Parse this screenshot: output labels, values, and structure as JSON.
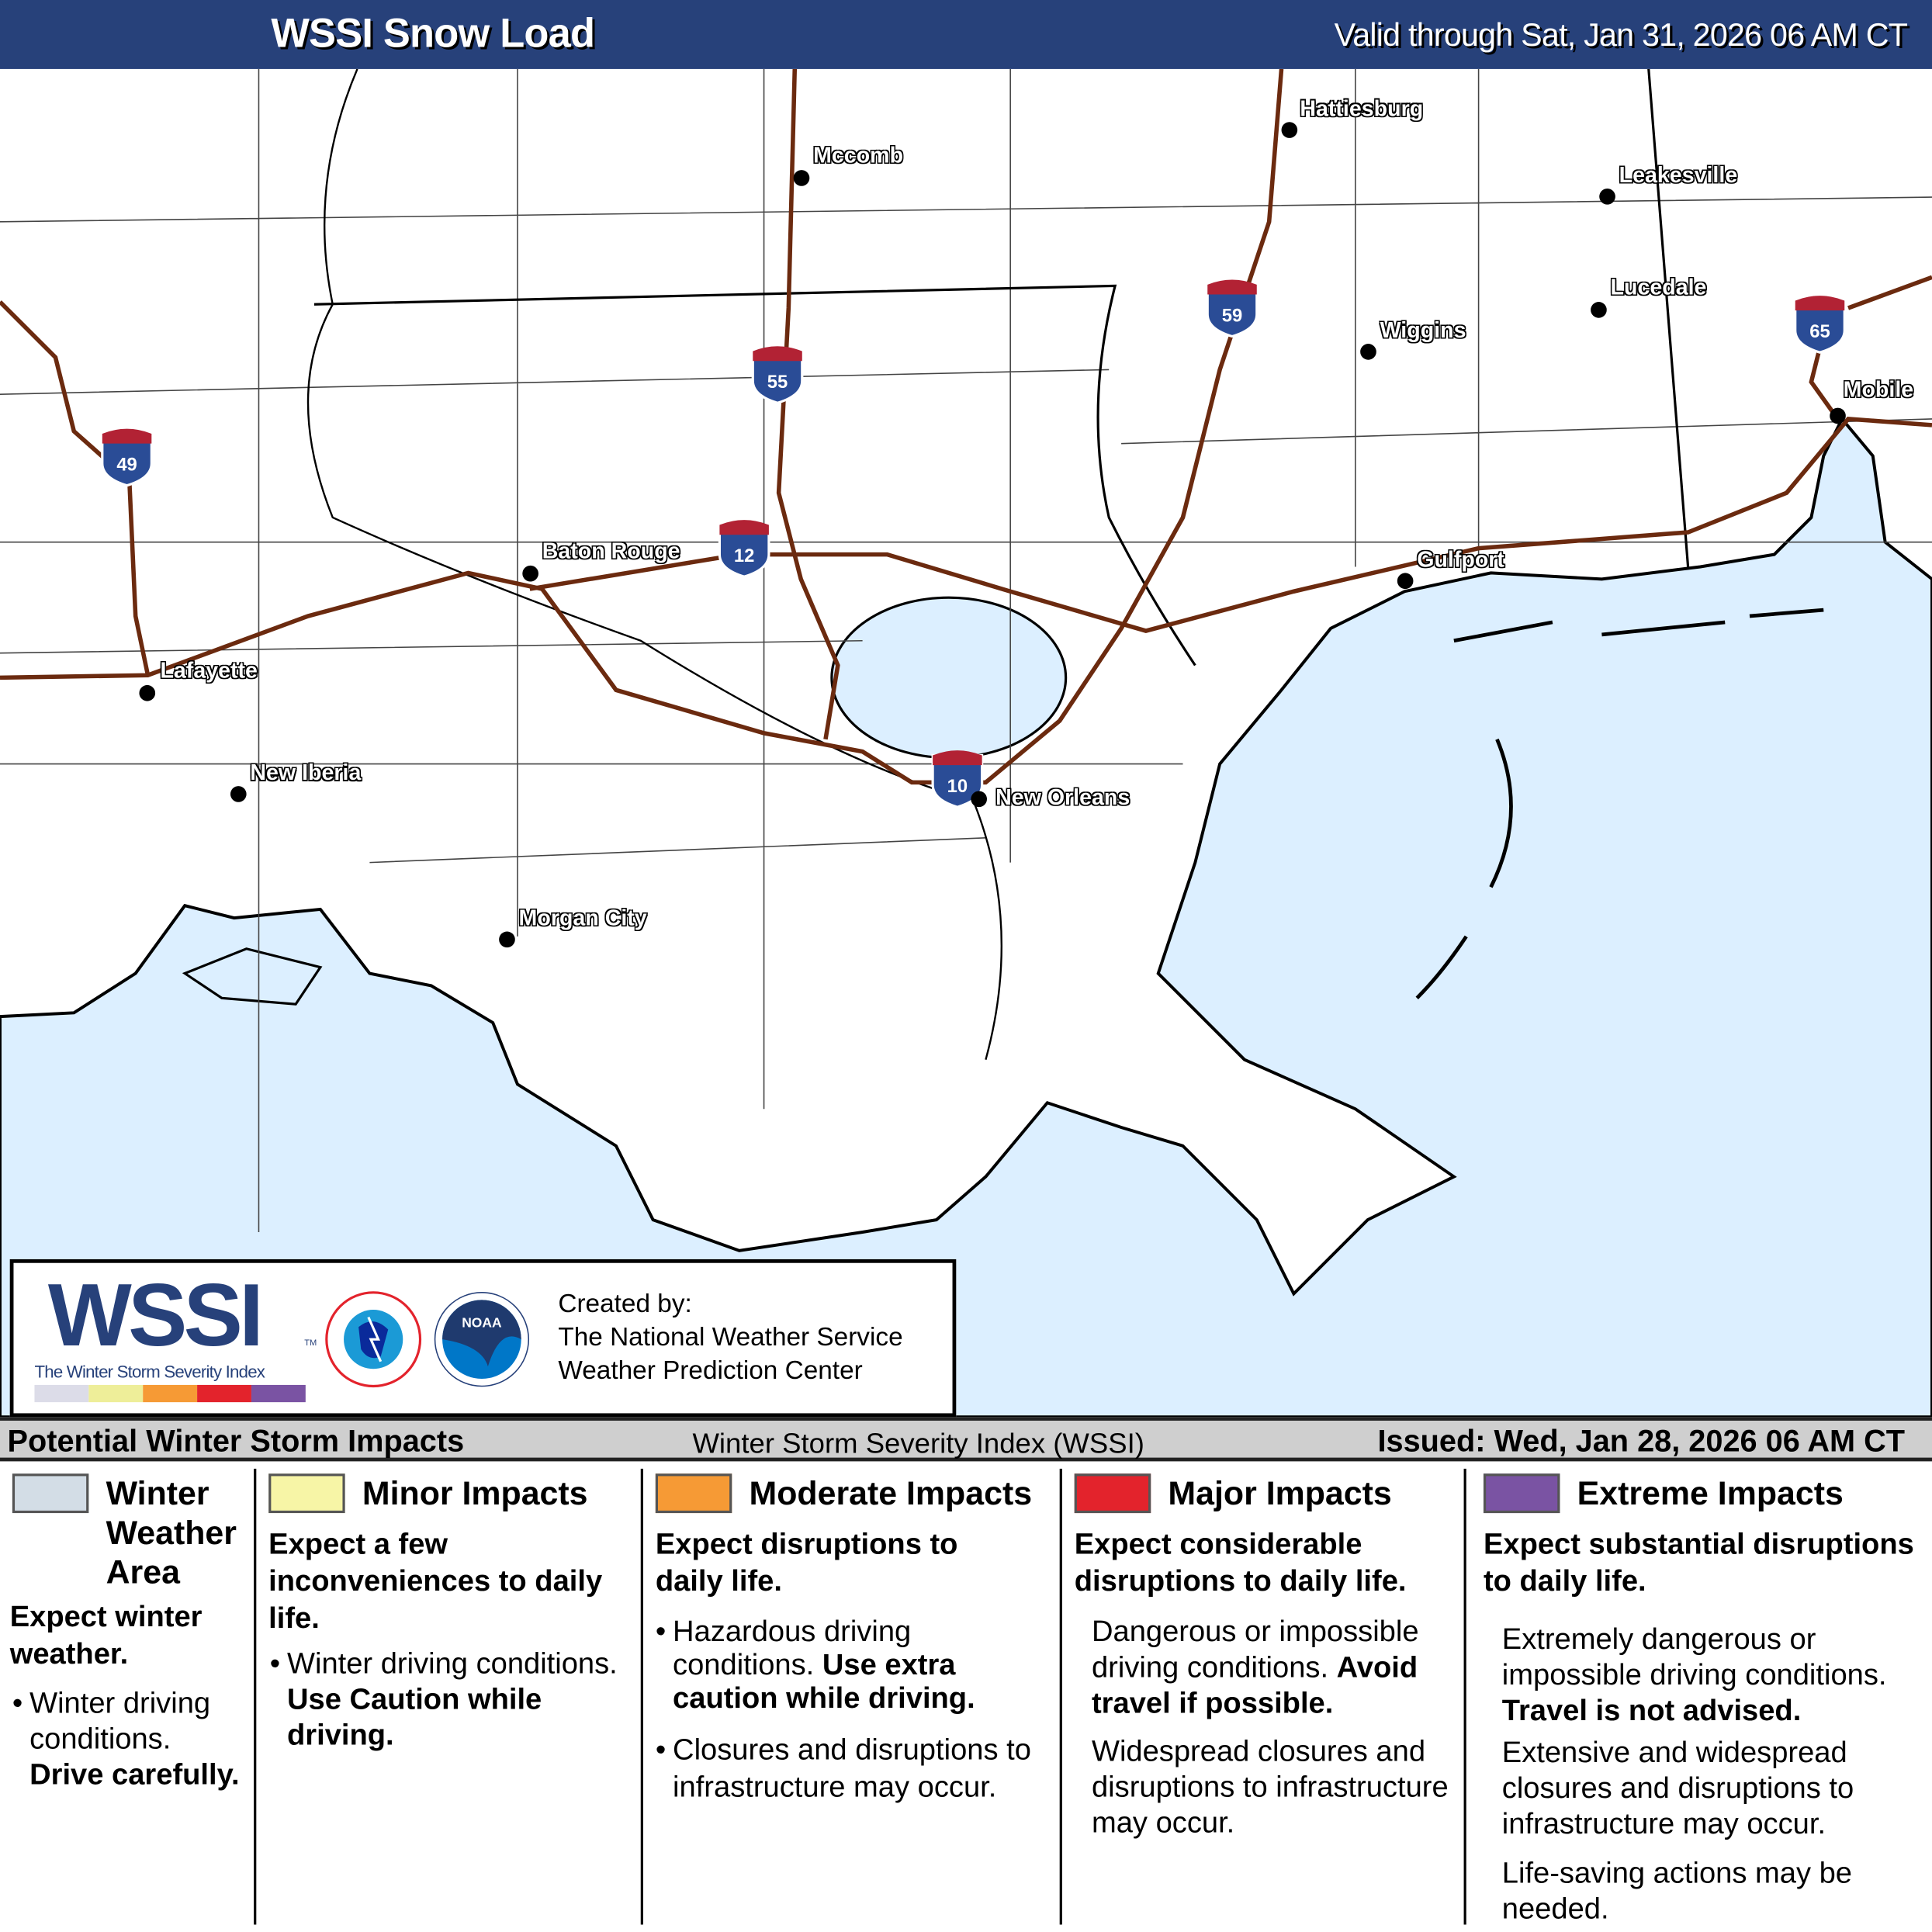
{
  "header": {
    "title": "WSSI Snow Load",
    "valid": "Valid through Sat, Jan 31, 2026 06 AM CT"
  },
  "colors": {
    "header": "#27417a",
    "water": "#dcefff",
    "highway": "#6b2a0f",
    "winter": "#d3dde6",
    "minor": "#f5f3a0",
    "moderate": "#f69a35",
    "major": "#e3232c",
    "extreme": "#7a53a3"
  },
  "cities": [
    "Hattiesburg",
    "Mccomb",
    "Leakesville",
    "Lucedale",
    "Wiggins",
    "Mobile",
    "Baton Rouge",
    "Gulfport",
    "Lafayette",
    "New Iberia",
    "New Orleans",
    "Morgan City"
  ],
  "interstates": [
    "49",
    "55",
    "12",
    "59",
    "65",
    "10"
  ],
  "logo": {
    "wssi": "WSSI",
    "tm": "TM",
    "subtitle": "The Winter Storm Severity Index",
    "created_by": "Created by:",
    "org1": "The National Weather Service",
    "org2": "Weather Prediction Center",
    "nws_ring": "NATIONAL WEATHER SERVICE",
    "noaa": "NOAA"
  },
  "legend_bar": {
    "left": "Potential Winter Storm Impacts",
    "center": "Winter Storm Severity Index (WSSI)",
    "right": "Issued: Wed, Jan 28, 2026 06 AM CT"
  },
  "legend": [
    {
      "title": "Winter Weather Area",
      "headline": "Expect winter weather.",
      "b1": "Winter driving conditions.",
      "b1b": "Drive carefully."
    },
    {
      "title": "Minor Impacts",
      "headline": "Expect a few inconveniences to daily life.",
      "b1": "Winter driving conditions.",
      "b1b": "Use Caution while driving."
    },
    {
      "title": "Moderate Impacts",
      "headline": "Expect disruptions to daily life.",
      "b1": "Hazardous driving conditions.",
      "b1b": "Use extra caution while driving.",
      "b2": "Closures and disruptions to infrastructure may occur."
    },
    {
      "title": "Major Impacts",
      "headline": "Expect considerable disruptions to daily life.",
      "b1": "Dangerous or impossible driving conditions.",
      "b1b": "Avoid travel if possible.",
      "b2": "Widespread closures and disruptions to infrastructure may occur."
    },
    {
      "title": "Extreme Impacts",
      "headline": "Expect substantial disruptions to daily life.",
      "b1": "Extremely dangerous or impossible driving conditions.",
      "b1b": "Travel is not advised.",
      "b2": "Extensive and widespread closures and disruptions to infrastructure may occur.",
      "b3": "Life-saving actions may be needed."
    }
  ]
}
